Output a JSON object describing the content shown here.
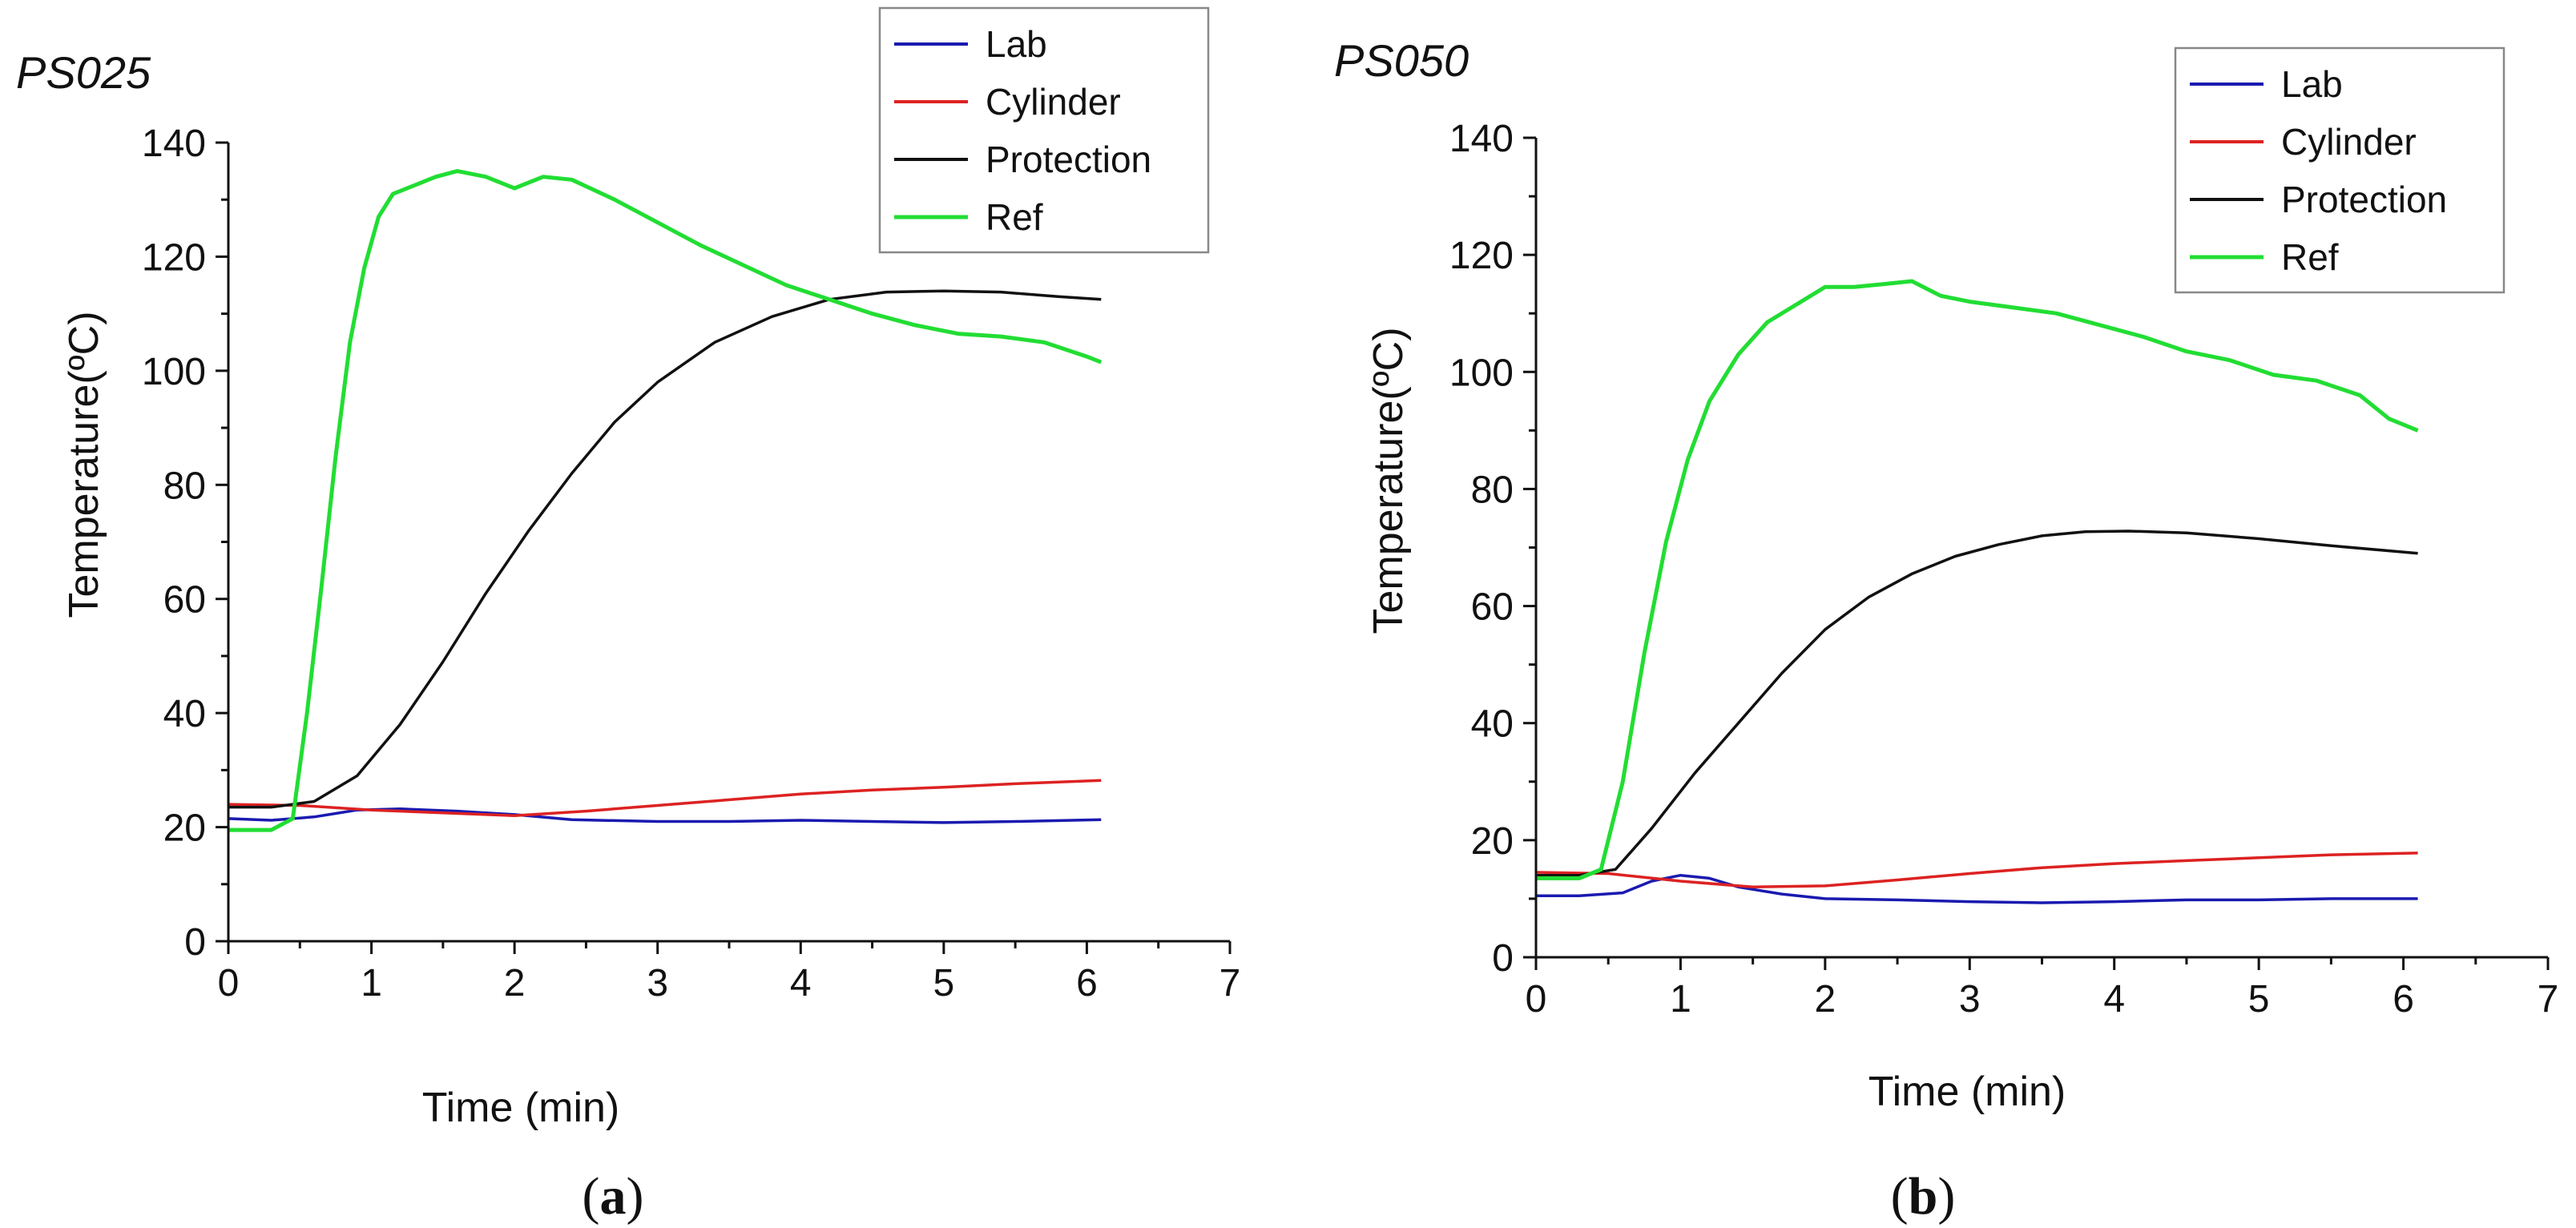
{
  "colors": {
    "Lab": "#1a1ab0",
    "Cylinder": "#dd2222",
    "Protection": "#111111",
    "Ref": "#22dd33"
  },
  "chart_data": [
    {
      "type": "line",
      "title": "PS025",
      "caption_letter": "a",
      "xlabel": "Time (min)",
      "ylabel": "Temperature(ºC)",
      "xlim": [
        0,
        7
      ],
      "ylim": [
        0,
        140
      ],
      "xticks": [
        "0",
        "1",
        "2",
        "3",
        "4",
        "5",
        "6",
        "7"
      ],
      "yticks": [
        "0",
        "20",
        "40",
        "60",
        "80",
        "100",
        "120",
        "140"
      ],
      "legend": [
        "Lab",
        "Cylinder",
        "Protection",
        "Ref"
      ],
      "series": [
        {
          "name": "Lab",
          "x": [
            0,
            0.3,
            0.6,
            0.9,
            1.2,
            1.6,
            2.0,
            2.4,
            3.0,
            3.5,
            4.0,
            4.5,
            5.0,
            5.5,
            6.1
          ],
          "values": [
            21.5,
            21.2,
            21.8,
            23.0,
            23.2,
            22.8,
            22.2,
            21.3,
            21.0,
            21.0,
            21.2,
            21.0,
            20.8,
            21.0,
            21.3
          ]
        },
        {
          "name": "Cylinder",
          "x": [
            0,
            0.5,
            1.0,
            1.5,
            2.0,
            2.5,
            3.0,
            3.5,
            4.0,
            4.5,
            5.0,
            5.5,
            6.1
          ],
          "values": [
            24.0,
            23.8,
            23.0,
            22.5,
            22.0,
            22.8,
            23.8,
            24.8,
            25.8,
            26.5,
            27.0,
            27.6,
            28.2
          ]
        },
        {
          "name": "Protection",
          "x": [
            0,
            0.3,
            0.6,
            0.9,
            1.2,
            1.5,
            1.8,
            2.1,
            2.4,
            2.7,
            3.0,
            3.4,
            3.8,
            4.2,
            4.6,
            5.0,
            5.4,
            5.8,
            6.1
          ],
          "values": [
            23.5,
            23.5,
            24.5,
            29.0,
            38.0,
            49.0,
            61.0,
            72.0,
            82.0,
            91.0,
            98.0,
            105.0,
            109.5,
            112.5,
            113.8,
            114.0,
            113.8,
            113.0,
            112.5
          ]
        },
        {
          "name": "Ref",
          "x": [
            0,
            0.3,
            0.45,
            0.55,
            0.65,
            0.75,
            0.85,
            0.95,
            1.05,
            1.15,
            1.3,
            1.45,
            1.6,
            1.8,
            2.0,
            2.2,
            2.4,
            2.7,
            3.0,
            3.3,
            3.6,
            3.9,
            4.2,
            4.5,
            4.8,
            5.1,
            5.4,
            5.7,
            6.0,
            6.1
          ],
          "values": [
            19.5,
            19.5,
            21.5,
            40.0,
            62.0,
            85.0,
            105.0,
            118.0,
            127.0,
            131.0,
            132.5,
            134.0,
            135.0,
            134.0,
            132.0,
            134.0,
            133.5,
            130.0,
            126.0,
            122.0,
            118.5,
            115.0,
            112.5,
            110.0,
            108.0,
            106.5,
            106.0,
            105.0,
            102.5,
            101.5
          ]
        }
      ]
    },
    {
      "type": "line",
      "title": "PS050",
      "caption_letter": "b",
      "xlabel": "Time (min)",
      "ylabel": "Temperature(ºC)",
      "xlim": [
        0,
        7
      ],
      "ylim": [
        0,
        140
      ],
      "xticks": [
        "0",
        "1",
        "2",
        "3",
        "4",
        "5",
        "6",
        "7"
      ],
      "yticks": [
        "0",
        "20",
        "40",
        "60",
        "80",
        "100",
        "120",
        "140"
      ],
      "legend": [
        "Lab",
        "Cylinder",
        "Protection",
        "Ref"
      ],
      "series": [
        {
          "name": "Lab",
          "x": [
            0,
            0.3,
            0.6,
            0.8,
            1.0,
            1.2,
            1.4,
            1.7,
            2.0,
            2.5,
            3.0,
            3.5,
            4.0,
            4.5,
            5.0,
            5.5,
            6.1
          ],
          "values": [
            10.5,
            10.5,
            11.0,
            13.0,
            14.0,
            13.5,
            12.0,
            10.8,
            10.0,
            9.8,
            9.5,
            9.3,
            9.5,
            9.8,
            9.8,
            10.0,
            10.0
          ]
        },
        {
          "name": "Cylinder",
          "x": [
            0,
            0.5,
            1.0,
            1.5,
            2.0,
            2.5,
            3.0,
            3.5,
            4.0,
            4.5,
            5.0,
            5.5,
            6.1
          ],
          "values": [
            14.5,
            14.3,
            13.0,
            12.0,
            12.2,
            13.2,
            14.3,
            15.3,
            16.0,
            16.5,
            17.0,
            17.5,
            17.8
          ]
        },
        {
          "name": "Protection",
          "x": [
            0,
            0.3,
            0.55,
            0.8,
            1.1,
            1.4,
            1.7,
            2.0,
            2.3,
            2.6,
            2.9,
            3.2,
            3.5,
            3.8,
            4.1,
            4.5,
            5.0,
            5.5,
            6.1
          ],
          "values": [
            14.0,
            14.0,
            15.0,
            22.0,
            31.5,
            40.0,
            48.5,
            56.0,
            61.5,
            65.5,
            68.5,
            70.5,
            72.0,
            72.7,
            72.8,
            72.5,
            71.5,
            70.3,
            69.0
          ]
        },
        {
          "name": "Ref",
          "x": [
            0,
            0.3,
            0.45,
            0.6,
            0.75,
            0.9,
            1.05,
            1.2,
            1.4,
            1.6,
            1.8,
            2.0,
            2.2,
            2.4,
            2.6,
            2.8,
            3.0,
            3.3,
            3.6,
            3.9,
            4.2,
            4.5,
            4.8,
            5.1,
            5.4,
            5.7,
            5.9,
            6.1
          ],
          "values": [
            13.5,
            13.5,
            15.0,
            30.0,
            52.0,
            71.0,
            85.0,
            95.0,
            103.0,
            108.5,
            111.5,
            114.5,
            114.5,
            115.0,
            115.5,
            113.0,
            112.0,
            111.0,
            110.0,
            108.0,
            106.0,
            103.5,
            102.0,
            99.5,
            98.5,
            96.0,
            92.0,
            90.0
          ]
        }
      ]
    }
  ]
}
